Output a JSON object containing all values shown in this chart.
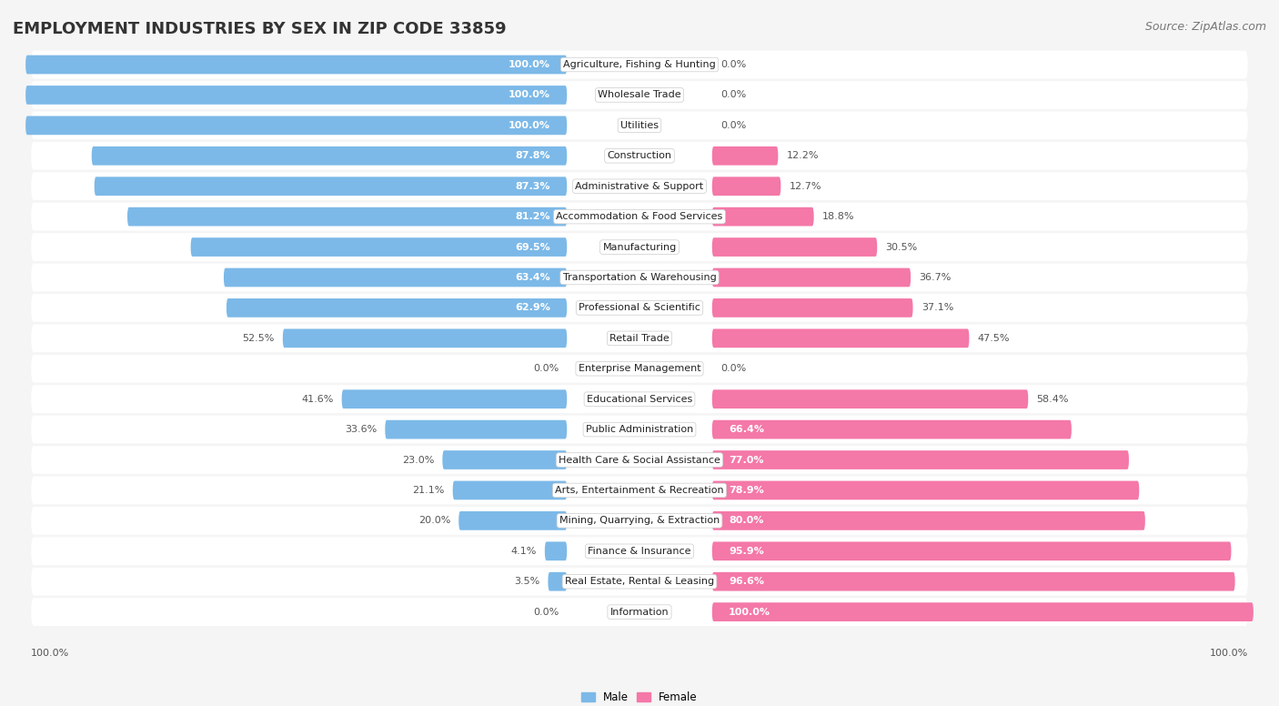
{
  "title": "EMPLOYMENT INDUSTRIES BY SEX IN ZIP CODE 33859",
  "source": "Source: ZipAtlas.com",
  "categories": [
    "Agriculture, Fishing & Hunting",
    "Wholesale Trade",
    "Utilities",
    "Construction",
    "Administrative & Support",
    "Accommodation & Food Services",
    "Manufacturing",
    "Transportation & Warehousing",
    "Professional & Scientific",
    "Retail Trade",
    "Enterprise Management",
    "Educational Services",
    "Public Administration",
    "Health Care & Social Assistance",
    "Arts, Entertainment & Recreation",
    "Mining, Quarrying, & Extraction",
    "Finance & Insurance",
    "Real Estate, Rental & Leasing",
    "Information"
  ],
  "male": [
    100.0,
    100.0,
    100.0,
    87.8,
    87.3,
    81.2,
    69.5,
    63.4,
    62.9,
    52.5,
    0.0,
    41.6,
    33.6,
    23.0,
    21.1,
    20.0,
    4.1,
    3.5,
    0.0
  ],
  "female": [
    0.0,
    0.0,
    0.0,
    12.2,
    12.7,
    18.8,
    30.5,
    36.7,
    37.1,
    47.5,
    0.0,
    58.4,
    66.4,
    77.0,
    78.9,
    80.0,
    95.9,
    96.6,
    100.0
  ],
  "male_color": "#7CB9E8",
  "female_color": "#F478A8",
  "row_bg_color": "#E8E8E8",
  "bg_color": "#F5F5F5",
  "title_fontsize": 13,
  "source_fontsize": 9,
  "label_fontsize": 8.0,
  "pct_fontsize": 8.0
}
